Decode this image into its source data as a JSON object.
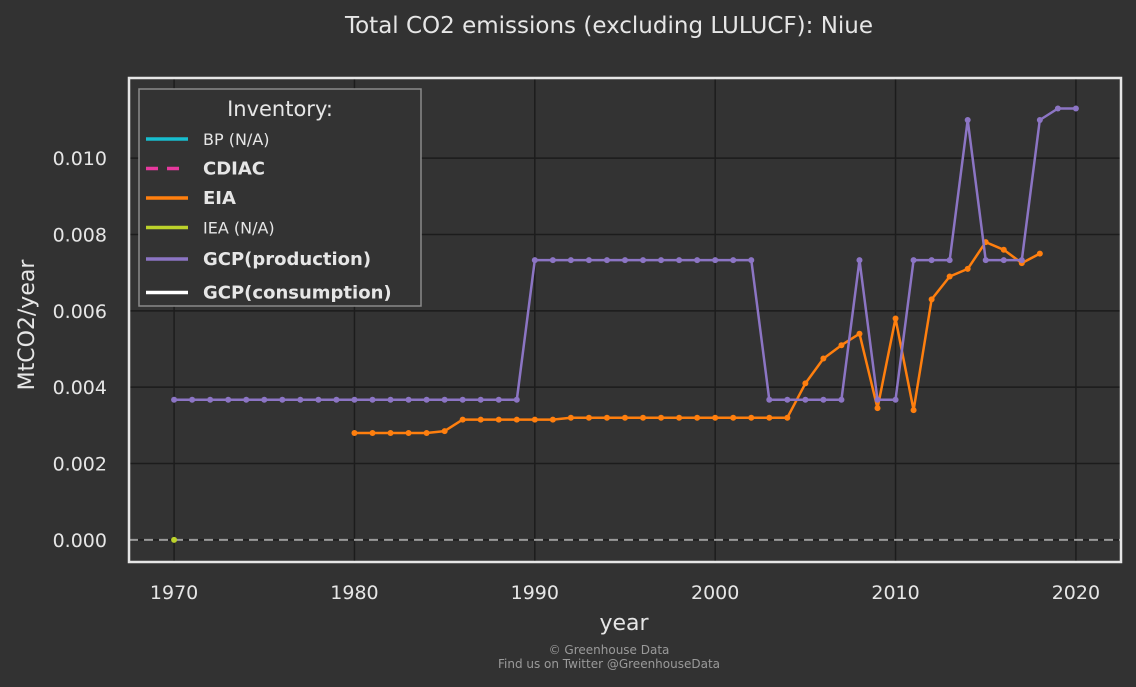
{
  "chart_data": {
    "type": "line",
    "title": "Total CO2 emissions (excluding LULUCF): Niue",
    "xlabel": "year",
    "ylabel": "MtCO2/year",
    "xlim": [
      1967.5,
      2022.5
    ],
    "ylim": [
      -0.00058,
      0.0121
    ],
    "xticks": [
      1970,
      1980,
      1990,
      2000,
      2010,
      2020
    ],
    "yticks": [
      0.0,
      0.002,
      0.004,
      0.006,
      0.008,
      0.01
    ],
    "ytick_labels": [
      "0.000",
      "0.002",
      "0.004",
      "0.006",
      "0.008",
      "0.010"
    ],
    "grid": true,
    "zero_line": true,
    "legend_title": "Inventory:",
    "legend_placement": "top-left",
    "series": [
      {
        "name": "BP (N/A)",
        "color": "#17becf",
        "bold": false,
        "style": "solid",
        "x": [],
        "y": []
      },
      {
        "name": "CDIAC",
        "color": "#e7399e",
        "bold": true,
        "style": "dashed",
        "x": [],
        "y": []
      },
      {
        "name": "EIA",
        "color": "#ff7f0e",
        "bold": true,
        "style": "solid",
        "x": [
          1980,
          1981,
          1982,
          1983,
          1984,
          1985,
          1986,
          1987,
          1988,
          1989,
          1990,
          1991,
          1992,
          1993,
          1994,
          1995,
          1996,
          1997,
          1998,
          1999,
          2000,
          2001,
          2002,
          2003,
          2004,
          2005,
          2006,
          2007,
          2008,
          2009,
          2010,
          2011,
          2012,
          2013,
          2014,
          2015,
          2016,
          2017,
          2018
        ],
        "y": [
          0.0028,
          0.0028,
          0.0028,
          0.0028,
          0.0028,
          0.00285,
          0.00315,
          0.00315,
          0.00315,
          0.00315,
          0.00315,
          0.00315,
          0.0032,
          0.0032,
          0.0032,
          0.0032,
          0.0032,
          0.0032,
          0.0032,
          0.0032,
          0.0032,
          0.0032,
          0.0032,
          0.0032,
          0.0032,
          0.0041,
          0.00475,
          0.0051,
          0.0054,
          0.00345,
          0.0058,
          0.0034,
          0.0063,
          0.0069,
          0.0071,
          0.0078,
          0.0076,
          0.00725,
          0.0075
        ]
      },
      {
        "name": "IEA (N/A)",
        "color": "#bcd22b",
        "bold": false,
        "style": "solid",
        "x": [
          1970
        ],
        "y": [
          0.0
        ]
      },
      {
        "name": "GCP(production)",
        "color": "#8c75c4",
        "bold": true,
        "style": "solid",
        "x": [
          1970,
          1971,
          1972,
          1973,
          1974,
          1975,
          1976,
          1977,
          1978,
          1979,
          1980,
          1981,
          1982,
          1983,
          1984,
          1985,
          1986,
          1987,
          1988,
          1989,
          1990,
          1991,
          1992,
          1993,
          1994,
          1995,
          1996,
          1997,
          1998,
          1999,
          2000,
          2001,
          2002,
          2003,
          2004,
          2005,
          2006,
          2007,
          2008,
          2009,
          2010,
          2011,
          2012,
          2013,
          2014,
          2015,
          2016,
          2017,
          2018,
          2019,
          2020
        ],
        "y": [
          0.00367,
          0.00367,
          0.00367,
          0.00367,
          0.00367,
          0.00367,
          0.00367,
          0.00367,
          0.00367,
          0.00367,
          0.00367,
          0.00367,
          0.00367,
          0.00367,
          0.00367,
          0.00367,
          0.00367,
          0.00367,
          0.00367,
          0.00367,
          0.00733,
          0.00733,
          0.00733,
          0.00733,
          0.00733,
          0.00733,
          0.00733,
          0.00733,
          0.00733,
          0.00733,
          0.00733,
          0.00733,
          0.00733,
          0.00367,
          0.00367,
          0.00367,
          0.00367,
          0.00367,
          0.00733,
          0.00367,
          0.00367,
          0.00733,
          0.00733,
          0.00733,
          0.011,
          0.00733,
          0.00733,
          0.00733,
          0.011,
          0.0113,
          0.0113
        ]
      },
      {
        "name": "GCP(consumption)",
        "color": "#ffffff",
        "bold": true,
        "style": "solid",
        "x": [],
        "y": []
      }
    ]
  },
  "footer": {
    "line1": "© Greenhouse Data",
    "line2": "Find us on Twitter @GreenhouseData"
  }
}
